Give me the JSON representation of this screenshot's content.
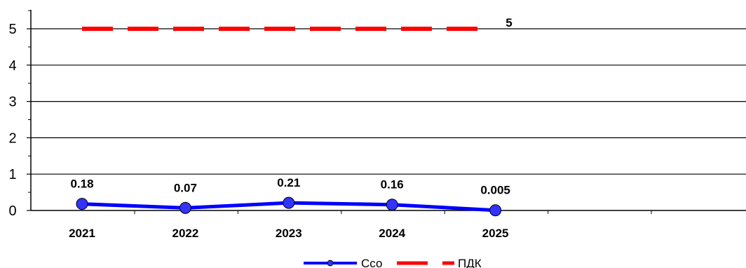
{
  "chart_data": {
    "type": "line",
    "categories": [
      "2021",
      "2022",
      "2023",
      "2024",
      "2025"
    ],
    "series": [
      {
        "name": "Ссо",
        "values": [
          0.18,
          0.07,
          0.21,
          0.16,
          0.005
        ],
        "data_labels": [
          "0.18",
          "0.07",
          "0.21",
          "0.16",
          "0.005"
        ],
        "color": "#0000ff",
        "marker_fill": "#3333ff",
        "style": "solid-with-markers"
      },
      {
        "name": "ПДК",
        "values": [
          5,
          5,
          5,
          5,
          5
        ],
        "end_label": "5",
        "color": "#ff0000",
        "style": "dashed"
      }
    ],
    "yticks": [
      "0",
      "1",
      "2",
      "3",
      "4",
      "5"
    ],
    "ylim": [
      0,
      5.5
    ],
    "grid": true,
    "legend_position": "bottom"
  }
}
